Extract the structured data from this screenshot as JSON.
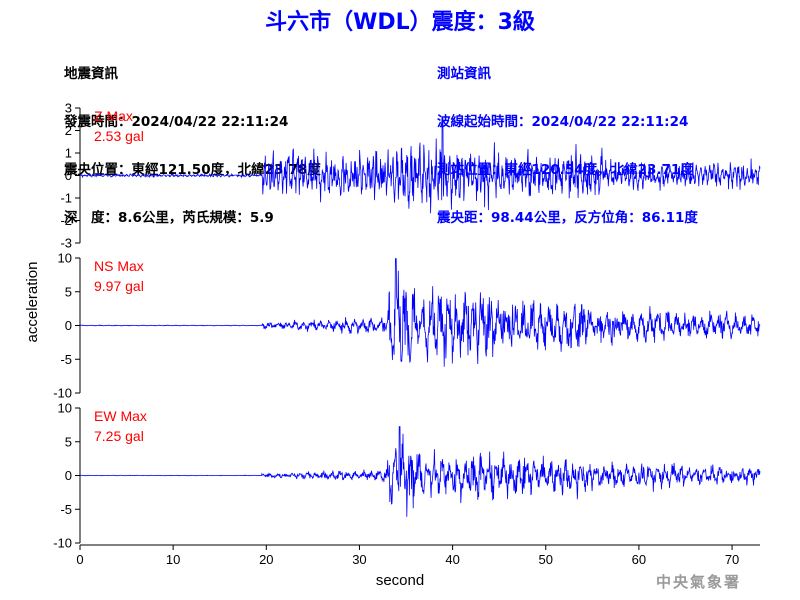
{
  "title": "斗六市（WDL）震度：3級",
  "event_info": {
    "heading": "地震資訊",
    "time": "發震時間：2024/04/22 22:11:24",
    "location": "震央位置：東經121.50度，北緯23.78度",
    "depth_magnitude": "深　度：8.6公里，芮氏規模：5.9"
  },
  "station_info": {
    "heading": "測站資訊",
    "start_time": "波線起始時間：2024/04/22 22:11:24",
    "location": "測站位置：東經120.54度，北緯23.71度",
    "distance": "震央距：98.44公里，反方位角：86.11度"
  },
  "watermark": "中央氣象署",
  "colors": {
    "title": "#0000ff",
    "trace": "#0000ff",
    "max_label": "#ff0000",
    "station_info": "#0000ff",
    "watermark": "#9a9a9a"
  },
  "chart_data": {
    "type": "line",
    "xlabel": "second",
    "ylabel": "acceleration",
    "xlim": [
      0,
      73
    ],
    "xticks": [
      0,
      10,
      20,
      30,
      40,
      50,
      60,
      70
    ],
    "panels": [
      {
        "name": "Z",
        "max_label": "Z Max",
        "max_value": "2.53 gal",
        "ylim": [
          -3,
          3
        ],
        "yticks": [
          3,
          2,
          1,
          0,
          -1,
          -2,
          -3
        ],
        "peak": 2.53,
        "peak_time": 38.9
      },
      {
        "name": "NS",
        "max_label": "NS Max",
        "max_value": "9.97 gal",
        "ylim": [
          -10,
          10
        ],
        "yticks": [
          10,
          5,
          0,
          -5,
          -10
        ],
        "peak": 9.97,
        "peak_time": 33.9
      },
      {
        "name": "EW",
        "max_label": "EW Max",
        "max_value": "7.25 gal",
        "ylim": [
          -10,
          10
        ],
        "yticks": [
          10,
          5,
          0,
          -5,
          -10
        ],
        "peak": 7.25,
        "peak_time": 34.3
      }
    ]
  }
}
